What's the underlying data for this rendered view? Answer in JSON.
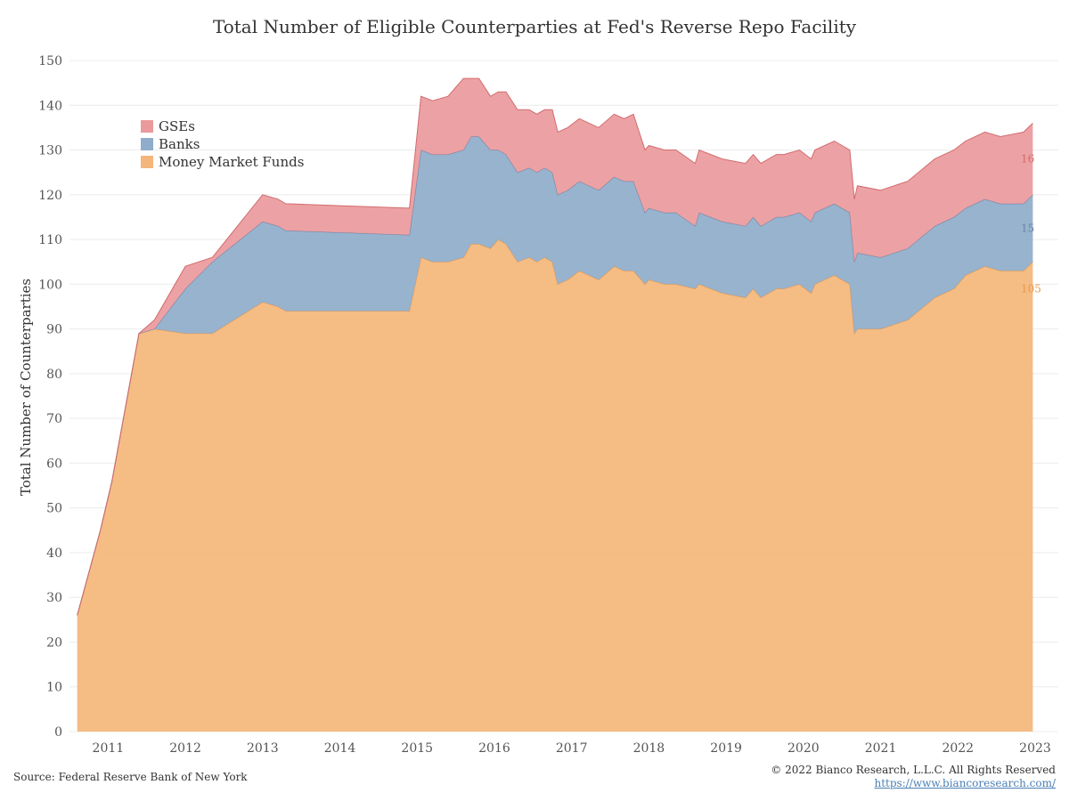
{
  "chart_data": {
    "type": "area",
    "title": "Total Number of Eligible Counterparties at Fed's Reverse Repo Facility",
    "xlabel": "",
    "ylabel": "Total Number of Counterparties",
    "stacked": true,
    "xlim": [
      2010.5,
      2023.3
    ],
    "ylim": [
      0,
      150
    ],
    "y_ticks": [
      0,
      10,
      20,
      30,
      40,
      50,
      60,
      70,
      80,
      90,
      100,
      110,
      120,
      130,
      140,
      150
    ],
    "x_ticks": [
      "2011",
      "2012",
      "2013",
      "2014",
      "2015",
      "2016",
      "2017",
      "2018",
      "2019",
      "2020",
      "2021",
      "2022",
      "2023"
    ],
    "grid": "horizontal",
    "legend_position": "top-left",
    "colors": {
      "Money Market Funds": "#f4b67a",
      "Banks": "#8facca",
      "GSEs": "#ea9a9c"
    },
    "line_colors": {
      "Money Market Funds": "#e79a4e",
      "Banks": "#6b84a8",
      "GSEs": "#d26b6f"
    },
    "legend": [
      "GSEs",
      "Banks",
      "Money Market Funds"
    ],
    "end_labels": [
      {
        "series": "GSEs",
        "text": "16",
        "color": "#d26b6f",
        "y": 128
      },
      {
        "series": "Banks",
        "text": "15",
        "color": "#6b84a8",
        "y": 112.5
      },
      {
        "series": "Money Market Funds",
        "text": "105",
        "color": "#e79a4e",
        "y": 99
      }
    ],
    "x": [
      2010.6,
      2010.9,
      2011.05,
      2011.4,
      2011.6,
      2012.0,
      2012.35,
      2013.0,
      2013.2,
      2013.3,
      2014.9,
      2015.05,
      2015.2,
      2015.4,
      2015.6,
      2015.7,
      2015.8,
      2015.95,
      2016.05,
      2016.15,
      2016.3,
      2016.45,
      2016.55,
      2016.65,
      2016.75,
      2016.82,
      2016.95,
      2017.1,
      2017.35,
      2017.55,
      2017.68,
      2017.8,
      2017.95,
      2018.0,
      2018.2,
      2018.35,
      2018.6,
      2018.65,
      2018.95,
      2019.25,
      2019.35,
      2019.45,
      2019.55,
      2019.65,
      2019.75,
      2019.95,
      2020.1,
      2020.15,
      2020.4,
      2020.6,
      2020.66,
      2020.7,
      2021.0,
      2021.35,
      2021.7,
      2021.95,
      2022.1,
      2022.35,
      2022.55,
      2022.85,
      2022.97
    ],
    "series": [
      {
        "name": "Money Market Funds",
        "values": [
          26,
          45,
          56,
          89,
          90,
          89,
          89,
          96,
          95,
          94,
          94,
          106,
          105,
          105,
          106,
          109,
          109,
          108,
          110,
          109,
          105,
          106,
          105,
          106,
          105,
          100,
          101,
          103,
          101,
          104,
          103,
          103,
          100,
          101,
          100,
          100,
          99,
          100,
          98,
          97,
          99,
          97,
          98,
          99,
          99,
          100,
          98,
          100,
          102,
          100,
          89,
          90,
          90,
          92,
          97,
          99,
          102,
          104,
          103,
          103,
          105
        ]
      },
      {
        "name": "Banks",
        "values": [
          0,
          0,
          0,
          0,
          0,
          10,
          16,
          18,
          18,
          18,
          17,
          24,
          24,
          24,
          24,
          24,
          24,
          22,
          20,
          20,
          20,
          20,
          20,
          20,
          20,
          20,
          20,
          20,
          20,
          20,
          20,
          20,
          16,
          16,
          16,
          16,
          14,
          16,
          16,
          16,
          16,
          16,
          16,
          16,
          16,
          16,
          16,
          16,
          16,
          16,
          16,
          17,
          16,
          16,
          16,
          16,
          15,
          15,
          15,
          15,
          15
        ]
      },
      {
        "name": "GSEs",
        "values": [
          0,
          0,
          0,
          0,
          2,
          5,
          1,
          6,
          6,
          6,
          6,
          12,
          12,
          13,
          16,
          13,
          13,
          12,
          13,
          14,
          14,
          13,
          13,
          13,
          14,
          14,
          14,
          14,
          14,
          14,
          14,
          15,
          14,
          14,
          14,
          14,
          14,
          14,
          14,
          14,
          14,
          14,
          14,
          14,
          14,
          14,
          14,
          14,
          14,
          14,
          14,
          15,
          15,
          15,
          15,
          15,
          15,
          15,
          15,
          16,
          16
        ]
      }
    ]
  },
  "footer": {
    "source": "Source: Federal Reserve Bank of New York",
    "copyright": "© 2022 Bianco Research, L.L.C. All Rights Reserved",
    "website": "https://www.biancoresearch.com/"
  }
}
